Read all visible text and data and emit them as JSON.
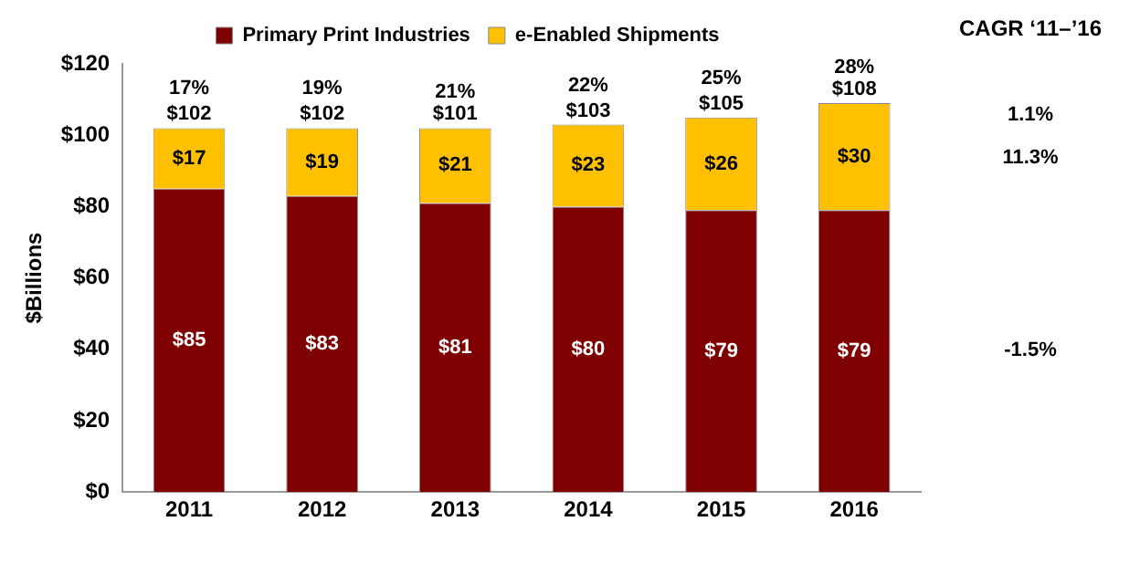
{
  "chart_data": {
    "type": "bar",
    "stacked": true,
    "ylabel": "$Billions",
    "categories": [
      "2011",
      "2012",
      "2013",
      "2014",
      "2015",
      "2016"
    ],
    "series": [
      {
        "name": "Primary Print Industries",
        "color": "#7f0000",
        "values": [
          85,
          83,
          81,
          80,
          79,
          79
        ],
        "value_labels": [
          "$85",
          "$83",
          "$81",
          "$80",
          "$79",
          "$79"
        ]
      },
      {
        "name": "e-Enabled Shipments",
        "color": "#ffc000",
        "values": [
          17,
          19,
          21,
          23,
          26,
          30
        ],
        "value_labels": [
          "$17",
          "$19",
          "$21",
          "$23",
          "$26",
          "$30"
        ]
      }
    ],
    "totals": [
      "$102",
      "$102",
      "$101",
      "$103",
      "$105",
      "$108"
    ],
    "ylim": [
      0,
      120
    ],
    "yticks": [
      {
        "value": 0,
        "label": "$0"
      },
      {
        "value": 20,
        "label": "$20"
      },
      {
        "value": 40,
        "label": "$40"
      },
      {
        "value": 60,
        "label": "$60"
      },
      {
        "value": 80,
        "label": "$80"
      },
      {
        "value": 100,
        "label": "$100"
      },
      {
        "value": 120,
        "label": "$120"
      }
    ],
    "grid": false,
    "legend": "top",
    "annotations": [
      "CAGR ‘11–’16",
      {
        "text": "17%",
        "x": "2011",
        "y": 102
      },
      {
        "text": "19%",
        "x": "2012",
        "y": 102
      },
      {
        "text": "21%",
        "x": "2013",
        "y": 101
      },
      {
        "text": "22%",
        "x": "2014",
        "y": 103
      },
      {
        "text": "25%",
        "x": "2015",
        "y": 105
      },
      {
        "text": "28%",
        "x": "2016",
        "y": 108
      },
      "1.1%",
      "11.3%",
      "-1.5%"
    ]
  }
}
